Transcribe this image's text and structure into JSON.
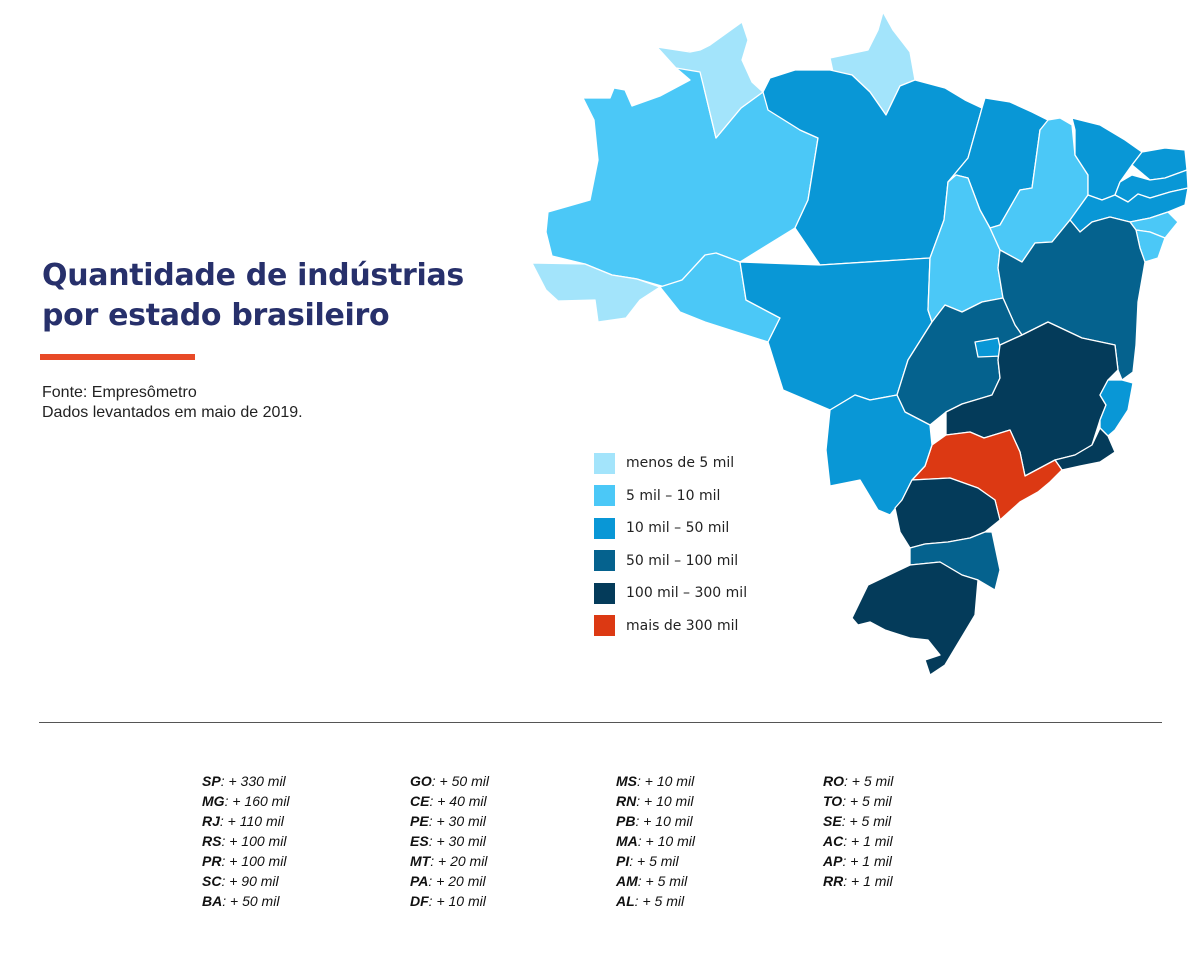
{
  "title_lines": [
    "Quantidade de indústrias",
    "por estado brasileiro"
  ],
  "source_lines": [
    "Fonte: Empresômetro",
    "Dados levantados em maio de 2019."
  ],
  "accent_color": "#e84a27",
  "legend": [
    {
      "label": "menos de 5 mil",
      "color": "#a3e4fb"
    },
    {
      "label": "5 mil – 10 mil",
      "color": "#4bc8f7"
    },
    {
      "label": "10 mil – 50 mil",
      "color": "#0997d6"
    },
    {
      "label": "50 mil – 100 mil",
      "color": "#05628e"
    },
    {
      "label": "100 mil – 300 mil",
      "color": "#043b5a"
    },
    {
      "label": "mais de 300 mil",
      "color": "#dc3913"
    }
  ],
  "states": [
    {
      "abbr": "SP",
      "value": "+ 330 mil",
      "category": 5
    },
    {
      "abbr": "MG",
      "value": "+ 160 mil",
      "category": 4
    },
    {
      "abbr": "RJ",
      "value": "+ 110 mil",
      "category": 4
    },
    {
      "abbr": "RS",
      "value": "+ 100 mil",
      "category": 4
    },
    {
      "abbr": "PR",
      "value": "+ 100 mil",
      "category": 4
    },
    {
      "abbr": "SC",
      "value": "+ 90 mil",
      "category": 3
    },
    {
      "abbr": "BA",
      "value": "+ 50 mil",
      "category": 3
    },
    {
      "abbr": "GO",
      "value": "+ 50 mil",
      "category": 3
    },
    {
      "abbr": "CE",
      "value": "+ 40 mil",
      "category": 2
    },
    {
      "abbr": "PE",
      "value": "+ 30 mil",
      "category": 2
    },
    {
      "abbr": "ES",
      "value": "+ 30 mil",
      "category": 2
    },
    {
      "abbr": "MT",
      "value": "+ 20 mil",
      "category": 2
    },
    {
      "abbr": "PA",
      "value": "+ 20 mil",
      "category": 2
    },
    {
      "abbr": "DF",
      "value": "+ 10 mil",
      "category": 2
    },
    {
      "abbr": "MS",
      "value": "+ 10 mil",
      "category": 2
    },
    {
      "abbr": "RN",
      "value": "+ 10 mil",
      "category": 2
    },
    {
      "abbr": "PB",
      "value": "+ 10 mil",
      "category": 2
    },
    {
      "abbr": "MA",
      "value": "+ 10 mil",
      "category": 2
    },
    {
      "abbr": "PI",
      "value": "+ 5 mil",
      "category": 1
    },
    {
      "abbr": "AM",
      "value": "+ 5 mil",
      "category": 1
    },
    {
      "abbr": "AL",
      "value": "+ 5 mil",
      "category": 1
    },
    {
      "abbr": "RO",
      "value": "+ 5 mil",
      "category": 1
    },
    {
      "abbr": "TO",
      "value": "+ 5 mil",
      "category": 1
    },
    {
      "abbr": "SE",
      "value": "+ 5 mil",
      "category": 1
    },
    {
      "abbr": "AC",
      "value": "+ 1 mil",
      "category": 0
    },
    {
      "abbr": "AP",
      "value": "+ 1 mil",
      "category": 0
    },
    {
      "abbr": "RR",
      "value": "+ 1 mil",
      "category": 0
    }
  ]
}
